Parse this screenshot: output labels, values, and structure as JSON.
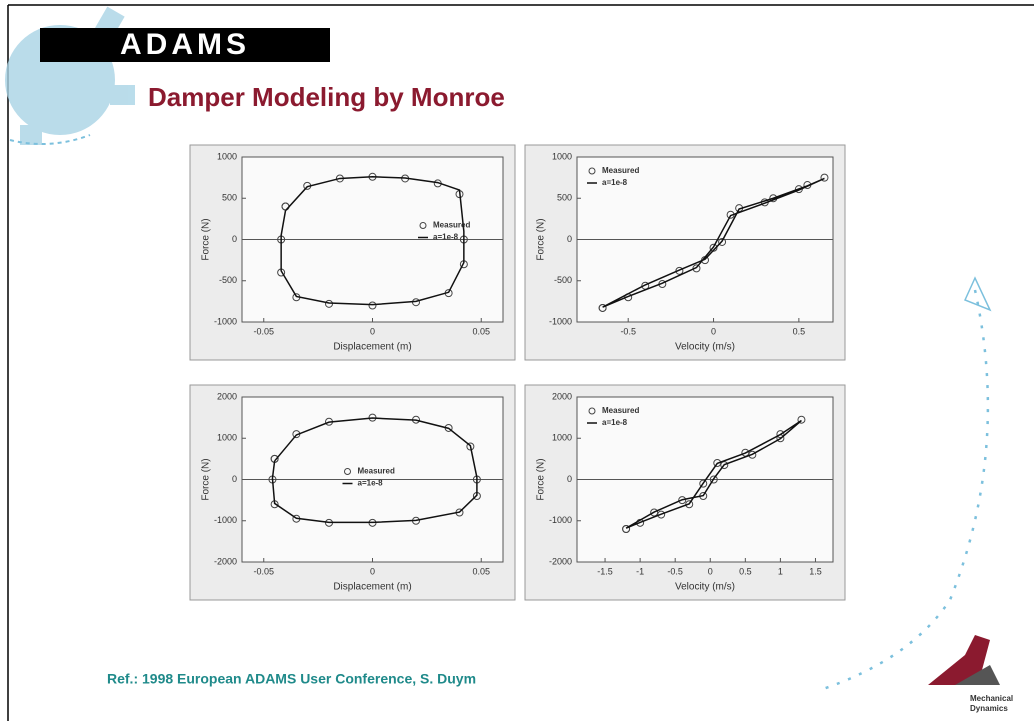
{
  "logo": "ADAMS",
  "title": "Damper Modeling by Monroe",
  "reference": "Ref.: 1998 European ADAMS User Conference, S. Duym",
  "company": [
    "Mechanical",
    "Dynamics"
  ],
  "chart_data": [
    {
      "type": "scatter",
      "x_label": "Displacement (m)",
      "y_label": "Force (N)",
      "legend": "center right",
      "xlim": [
        -0.06,
        0.06
      ],
      "xticks": [
        -0.05,
        0,
        0.05
      ],
      "ylim": [
        -1000,
        1000
      ],
      "yticks": [
        -1000,
        -500,
        0,
        500,
        1000
      ],
      "x": [
        -0.04,
        -0.03,
        -0.015,
        0,
        0.015,
        0.03,
        0.04,
        0.042,
        0.042,
        0.035,
        0.02,
        0,
        -0.02,
        -0.035,
        -0.042,
        -0.042,
        -0.04
      ],
      "series": [
        {
          "name": "Measured",
          "style": "marker",
          "color": "#444444",
          "values": [
            400,
            650,
            740,
            760,
            740,
            680,
            550,
            0,
            -300,
            -650,
            -760,
            -800,
            -780,
            -700,
            -400,
            0,
            400
          ]
        },
        {
          "name": "a=1e-8",
          "style": "line",
          "color": "#111111",
          "values": [
            350,
            640,
            740,
            760,
            745,
            690,
            600,
            100,
            -280,
            -640,
            -750,
            -790,
            -770,
            -690,
            -380,
            50,
            350
          ]
        }
      ]
    },
    {
      "type": "scatter",
      "x_label": "Velocity (m/s)",
      "y_label": "Force (N)",
      "legend": "upper left",
      "xlim": [
        -0.8,
        0.7
      ],
      "xticks": [
        -0.5,
        0,
        0.5
      ],
      "ylim": [
        -1000,
        1000
      ],
      "yticks": [
        -1000,
        -500,
        0,
        500,
        1000
      ],
      "x": [
        -0.65,
        -0.4,
        -0.2,
        -0.05,
        0.05,
        0.15,
        0.35,
        0.55,
        0.65,
        0.5,
        0.3,
        0.1,
        0,
        -0.1,
        -0.3,
        -0.5,
        -0.65
      ],
      "series": [
        {
          "name": "Measured",
          "style": "marker",
          "color": "#444444",
          "values": [
            -830,
            -560,
            -380,
            -250,
            -30,
            380,
            500,
            660,
            750,
            610,
            450,
            300,
            -100,
            -350,
            -540,
            -700,
            -830
          ]
        },
        {
          "name": "a=1e-8",
          "style": "line",
          "color": "#111111",
          "values": [
            -820,
            -550,
            -370,
            -240,
            -20,
            370,
            500,
            650,
            740,
            600,
            440,
            290,
            -90,
            -340,
            -530,
            -690,
            -820
          ]
        }
      ]
    },
    {
      "type": "scatter",
      "x_label": "Displacement (m)",
      "y_label": "Force (N)",
      "legend": "center",
      "xlim": [
        -0.06,
        0.06
      ],
      "xticks": [
        -0.05,
        0,
        0.05
      ],
      "ylim": [
        -2000,
        2000
      ],
      "yticks": [
        -2000,
        -1000,
        0,
        1000,
        2000
      ],
      "x": [
        -0.045,
        -0.035,
        -0.02,
        0,
        0.02,
        0.035,
        0.045,
        0.048,
        0.048,
        0.04,
        0.02,
        0,
        -0.02,
        -0.035,
        -0.045,
        -0.046,
        -0.045
      ],
      "series": [
        {
          "name": "Measured",
          "style": "marker",
          "color": "#444444",
          "values": [
            500,
            1100,
            1400,
            1500,
            1450,
            1250,
            800,
            0,
            -400,
            -800,
            -1000,
            -1050,
            -1050,
            -950,
            -600,
            0,
            500
          ]
        },
        {
          "name": "a=1e-8",
          "style": "line",
          "color": "#111111",
          "values": [
            450,
            1080,
            1390,
            1490,
            1440,
            1240,
            820,
            50,
            -380,
            -790,
            -990,
            -1040,
            -1040,
            -940,
            -580,
            30,
            450
          ]
        }
      ]
    },
    {
      "type": "scatter",
      "x_label": "Velocity (m/s)",
      "y_label": "Force (N)",
      "legend": "upper left",
      "xlim": [
        -1.9,
        1.75
      ],
      "xticks": [
        -1.5,
        -1,
        -0.5,
        0,
        0.5,
        1,
        1.5
      ],
      "ylim": [
        -2000,
        2000
      ],
      "yticks": [
        -2000,
        -1000,
        0,
        1000,
        2000
      ],
      "x": [
        -1.2,
        -0.8,
        -0.4,
        -0.1,
        0.05,
        0.2,
        0.6,
        1,
        1.3,
        1,
        0.5,
        0.1,
        -0.1,
        -0.3,
        -0.7,
        -1,
        -1.2
      ],
      "series": [
        {
          "name": "Measured",
          "style": "marker",
          "color": "#444444",
          "values": [
            -1200,
            -800,
            -500,
            -400,
            0,
            350,
            600,
            1000,
            1450,
            1100,
            650,
            400,
            -100,
            -600,
            -850,
            -1050,
            -1200
          ]
        },
        {
          "name": "a=1e-8",
          "style": "line",
          "color": "#111111",
          "values": [
            -1180,
            -790,
            -490,
            -390,
            20,
            360,
            610,
            990,
            1430,
            1090,
            640,
            390,
            -90,
            -590,
            -840,
            -1040,
            -1180
          ]
        }
      ]
    }
  ]
}
